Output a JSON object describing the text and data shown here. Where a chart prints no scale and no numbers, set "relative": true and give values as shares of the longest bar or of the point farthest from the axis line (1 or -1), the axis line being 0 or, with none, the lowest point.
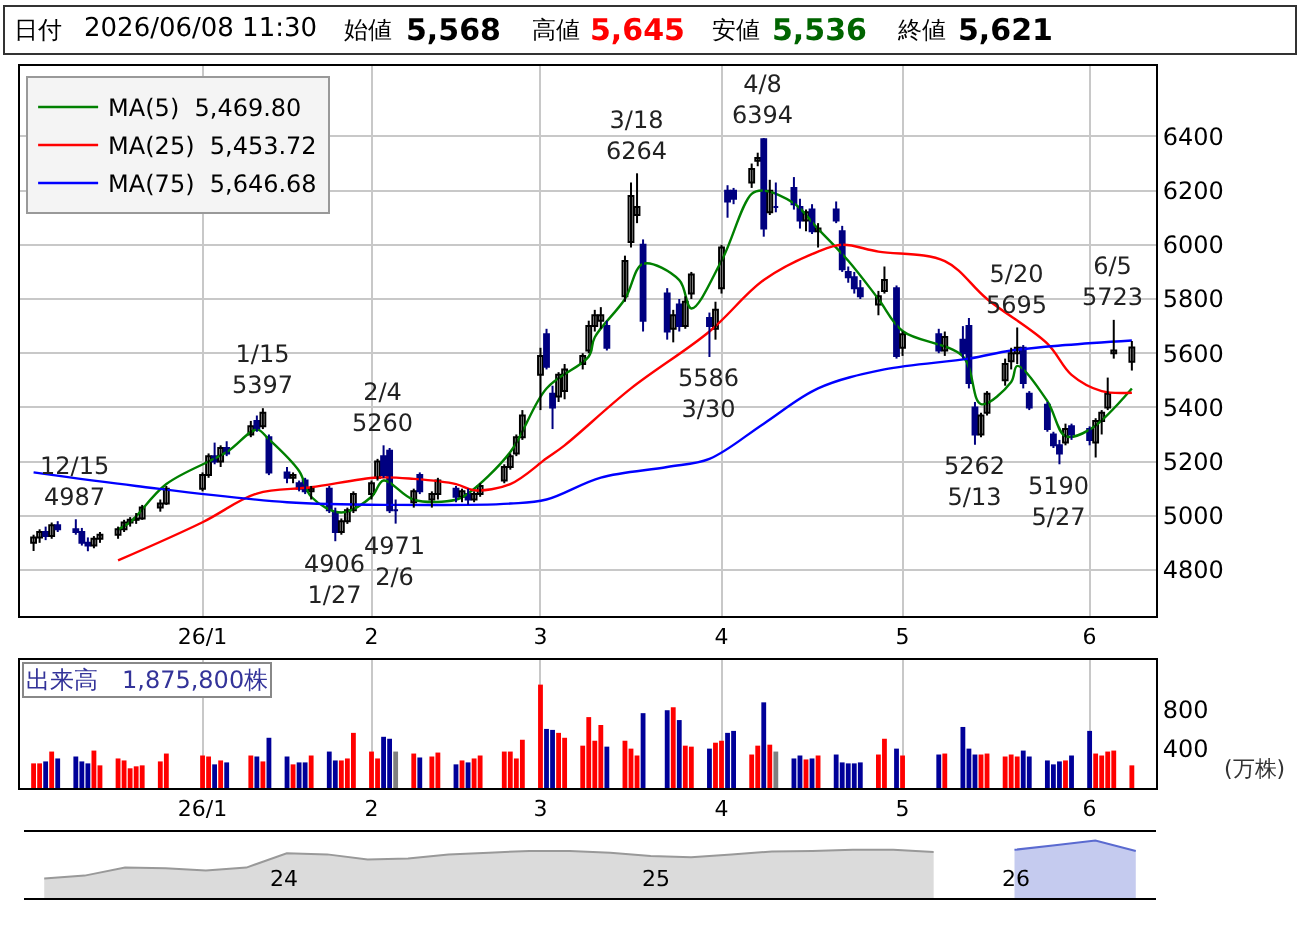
{
  "chart_data": [
    {
      "type": "other",
      "annotations": [
        "日付",
        "2026/06/08 11:30",
        "始値",
        "5,568",
        "高値",
        "5,645",
        "安値",
        "5,536",
        "終値",
        "5,621"
      ],
      "colors": [
        "#000000",
        "#000000",
        "#000000",
        "#000000",
        "#000000",
        "#ff0000",
        "#000000",
        "#006400",
        "#000000",
        "#000000"
      ]
    },
    {
      "type": "candlestick",
      "color": "#000080",
      "colors": [
        "#ffffff",
        "#ffffff",
        "#000080",
        "#ffffff",
        "#000080",
        "#000080",
        "#000080",
        "#000080",
        "#ffffff",
        "#ffffff",
        "#ffffff",
        "#ffffff",
        "#ffffff",
        "#ffffff",
        "#ffffff",
        "#ffffff",
        "#ffffff",
        "#ffffff",
        "#ffffff",
        "#000080",
        "#ffffff",
        "#000080",
        "#ffffff",
        "#000080",
        "#ffffff",
        "#000080",
        "#000080",
        "#ffffff",
        "#000080",
        "#000080",
        "#ffffff",
        "#000080",
        "#000080",
        "#ffffff",
        "#ffffff",
        "#ffffff",
        "#ffffff",
        "#ffffff",
        "#000080",
        "#000080",
        "#000080",
        "#ffffff",
        "#000080",
        "#ffffff",
        "#ffffff",
        "#000080",
        "#ffffff",
        "#000080",
        "#ffffff",
        "#ffffff",
        "#ffffff",
        "#ffffff",
        "#ffffff",
        "#ffffff",
        "#ffffff",
        "#000080",
        "#000080",
        "#ffffff",
        "#ffffff",
        "#ffffff",
        "#ffffff",
        "#ffffff",
        "#ffffff",
        "#000080",
        "#ffffff",
        "#ffffff",
        "#ffffff",
        "#000080",
        "#000080",
        "#ffffff",
        "#000080",
        "#ffffff",
        "#ffffff",
        "#000080",
        "#ffffff",
        "#ffffff",
        "#000080",
        "#000080",
        "#ffffff",
        "#ffffff",
        "#000080",
        "#ffffff",
        "#000080",
        "#000080",
        "#000080",
        "#ffffff",
        "#000080",
        "#ffffff",
        "#000080",
        "#000080",
        "#000080",
        "#000080",
        "#000080",
        "#ffffff",
        "#ffffff",
        "#000080",
        "#ffffff",
        "#000080",
        "#ffffff",
        "#000080",
        "#000080",
        "#000080",
        "#ffffff",
        "#ffffff",
        "#ffffff",
        "#ffffff",
        "#ffffff",
        "#000080",
        "#000080",
        "#000080",
        "#000080",
        "#000080",
        "#ffffff",
        "#000080",
        "#000080",
        "#ffffff",
        "#ffffff",
        "#ffffff",
        "#ffffff",
        "#ffffff"
      ],
      "x": [
        "2025-12-08",
        "2025-12-09",
        "2025-12-10",
        "2025-12-11",
        "2025-12-12",
        "2025-12-15",
        "2025-12-16",
        "2025-12-17",
        "2025-12-18",
        "2025-12-19",
        "2025-12-22",
        "2025-12-23",
        "2025-12-24",
        "2025-12-25",
        "2025-12-26",
        "2025-12-29",
        "2025-12-30",
        "2026-01-05",
        "2026-01-06",
        "2026-01-07",
        "2026-01-08",
        "2026-01-09",
        "2026-01-13",
        "2026-01-14",
        "2026-01-15",
        "2026-01-16",
        "2026-01-19",
        "2026-01-20",
        "2026-01-21",
        "2026-01-22",
        "2026-01-23",
        "2026-01-26",
        "2026-01-27",
        "2026-01-28",
        "2026-01-29",
        "2026-01-30",
        "2026-02-02",
        "2026-02-03",
        "2026-02-04",
        "2026-02-05",
        "2026-02-06",
        "2026-02-09",
        "2026-02-10",
        "2026-02-12",
        "2026-02-13",
        "2026-02-16",
        "2026-02-17",
        "2026-02-18",
        "2026-02-19",
        "2026-02-20",
        "2026-02-24",
        "2026-02-25",
        "2026-02-26",
        "2026-02-27",
        "2026-03-02",
        "2026-03-03",
        "2026-03-04",
        "2026-03-05",
        "2026-03-06",
        "2026-03-09",
        "2026-03-10",
        "2026-03-11",
        "2026-03-12",
        "2026-03-13",
        "2026-03-16",
        "2026-03-17",
        "2026-03-18",
        "2026-03-19",
        "2026-03-23",
        "2026-03-24",
        "2026-03-25",
        "2026-03-26",
        "2026-03-27",
        "2026-03-30",
        "2026-03-31",
        "2026-04-01",
        "2026-04-02",
        "2026-04-03",
        "2026-04-06",
        "2026-04-07",
        "2026-04-08",
        "2026-04-09",
        "2026-04-10",
        "2026-04-13",
        "2026-04-14",
        "2026-04-15",
        "2026-04-16",
        "2026-04-17",
        "2026-04-20",
        "2026-04-21",
        "2026-04-22",
        "2026-04-23",
        "2026-04-24",
        "2026-04-27",
        "2026-04-28",
        "2026-04-30",
        "2026-05-01",
        "2026-05-07",
        "2026-05-08",
        "2026-05-11",
        "2026-05-12",
        "2026-05-13",
        "2026-05-14",
        "2026-05-15",
        "2026-05-18",
        "2026-05-19",
        "2026-05-20",
        "2026-05-21",
        "2026-05-22",
        "2026-05-25",
        "2026-05-26",
        "2026-05-27",
        "2026-05-28",
        "2026-05-29",
        "2026-06-01",
        "2026-06-02",
        "2026-06-03",
        "2026-06-04",
        "2026-06-05",
        "2026-06-08"
      ],
      "ohlc": [
        [
          4900,
          4930,
          4870,
          4920
        ],
        [
          4920,
          4950,
          4900,
          4940
        ],
        [
          4940,
          4960,
          4910,
          4925
        ],
        [
          4925,
          4975,
          4915,
          4965
        ],
        [
          4965,
          4980,
          4940,
          4950
        ],
        [
          4950,
          4987,
          4930,
          4940
        ],
        [
          4940,
          4955,
          4890,
          4900
        ],
        [
          4900,
          4920,
          4869,
          4890
        ],
        [
          4890,
          4925,
          4880,
          4915
        ],
        [
          4915,
          4940,
          4900,
          4930
        ],
        [
          4930,
          4960,
          4915,
          4950
        ],
        [
          4950,
          4985,
          4940,
          4975
        ],
        [
          4975,
          4995,
          4960,
          4985
        ],
        [
          4985,
          5010,
          4970,
          4990
        ],
        [
          4990,
          5040,
          4985,
          5030
        ],
        [
          5030,
          5060,
          5015,
          5045
        ],
        [
          5045,
          5110,
          5040,
          5100
        ],
        [
          5100,
          5160,
          5090,
          5150
        ],
        [
          5150,
          5230,
          5140,
          5220
        ],
        [
          5220,
          5270,
          5190,
          5200
        ],
        [
          5200,
          5260,
          5180,
          5250
        ],
        [
          5250,
          5275,
          5220,
          5230
        ],
        [
          5300,
          5350,
          5290,
          5330
        ],
        [
          5350,
          5370,
          5310,
          5320
        ],
        [
          5330,
          5397,
          5320,
          5380
        ],
        [
          5290,
          5300,
          5150,
          5160
        ],
        [
          5160,
          5180,
          5120,
          5140
        ],
        [
          5140,
          5160,
          5120,
          5150
        ],
        [
          5120,
          5130,
          5090,
          5100
        ],
        [
          5130,
          5140,
          5080,
          5090
        ],
        [
          5090,
          5110,
          5060,
          5100
        ],
        [
          5100,
          5110,
          5010,
          5020
        ],
        [
          5010,
          5030,
          4906,
          4940
        ],
        [
          4940,
          4990,
          4930,
          4980
        ],
        [
          4980,
          5030,
          4970,
          5020
        ],
        [
          5020,
          5090,
          5010,
          5080
        ],
        [
          5080,
          5130,
          5060,
          5120
        ],
        [
          5140,
          5210,
          5130,
          5200
        ],
        [
          5220,
          5260,
          5140,
          5150
        ],
        [
          5240,
          5250,
          5010,
          5020
        ],
        [
          5020,
          5060,
          4971,
          5020
        ],
        [
          5050,
          5100,
          5030,
          5090
        ],
        [
          5150,
          5160,
          5080,
          5090
        ],
        [
          5060,
          5090,
          5030,
          5080
        ],
        [
          5080,
          5140,
          5060,
          5130
        ],
        [
          5100,
          5110,
          5050,
          5070
        ],
        [
          5070,
          5100,
          5050,
          5090
        ],
        [
          5080,
          5100,
          5040,
          5060
        ],
        [
          5060,
          5090,
          5050,
          5080
        ],
        [
          5080,
          5120,
          5070,
          5110
        ],
        [
          5130,
          5190,
          5120,
          5180
        ],
        [
          5180,
          5230,
          5170,
          5220
        ],
        [
          5230,
          5300,
          5220,
          5290
        ],
        [
          5290,
          5390,
          5280,
          5370
        ],
        [
          5520,
          5620,
          5390,
          5590
        ],
        [
          5670,
          5690,
          5540,
          5550
        ],
        [
          5450,
          5480,
          5320,
          5400
        ],
        [
          5440,
          5530,
          5420,
          5520
        ],
        [
          5460,
          5560,
          5430,
          5540
        ],
        [
          5560,
          5600,
          5540,
          5590
        ],
        [
          5610,
          5720,
          5600,
          5700
        ],
        [
          5700,
          5760,
          5680,
          5740
        ],
        [
          5720,
          5770,
          5690,
          5740
        ],
        [
          5700,
          5720,
          5610,
          5620
        ],
        [
          5810,
          5960,
          5790,
          5940
        ],
        [
          6010,
          6230,
          5990,
          6180
        ],
        [
          6110,
          6264,
          6080,
          6140
        ],
        [
          6000,
          6020,
          5680,
          5720
        ],
        [
          5820,
          5840,
          5650,
          5680
        ],
        [
          5690,
          5760,
          5640,
          5740
        ],
        [
          5780,
          5800,
          5680,
          5700
        ],
        [
          5700,
          5810,
          5690,
          5790
        ],
        [
          5820,
          5900,
          5800,
          5890
        ],
        [
          5730,
          5750,
          5586,
          5700
        ],
        [
          5690,
          5790,
          5650,
          5760
        ],
        [
          5840,
          6000,
          5820,
          5990
        ],
        [
          6200,
          6220,
          6100,
          6160
        ],
        [
          6200,
          6210,
          6150,
          6170
        ],
        [
          6230,
          6300,
          6210,
          6280
        ],
        [
          6310,
          6340,
          6290,
          6320
        ],
        [
          6390,
          6394,
          6030,
          6060
        ],
        [
          6120,
          6240,
          6110,
          6200
        ],
        [
          6140,
          6230,
          6120,
          6140
        ],
        [
          6210,
          6250,
          6130,
          6150
        ],
        [
          6140,
          6170,
          6060,
          6090
        ],
        [
          6090,
          6130,
          6050,
          6120
        ],
        [
          6130,
          6150,
          6040,
          6050
        ],
        [
          6050,
          6080,
          5990,
          6060
        ],
        [
          6130,
          6160,
          6080,
          6090
        ],
        [
          6050,
          6070,
          5900,
          5910
        ],
        [
          5900,
          5920,
          5860,
          5880
        ],
        [
          5880,
          5900,
          5820,
          5840
        ],
        [
          5840,
          5870,
          5800,
          5810
        ],
        [
          5780,
          5830,
          5740,
          5810
        ],
        [
          5830,
          5920,
          5820,
          5870
        ],
        [
          5840,
          5850,
          5580,
          5590
        ],
        [
          5620,
          5680,
          5590,
          5670
        ],
        [
          5670,
          5690,
          5600,
          5610
        ],
        [
          5610,
          5680,
          5590,
          5660
        ],
        [
          5650,
          5700,
          5580,
          5600
        ],
        [
          5700,
          5730,
          5470,
          5490
        ],
        [
          5400,
          5420,
          5262,
          5300
        ],
        [
          5300,
          5380,
          5290,
          5370
        ],
        [
          5380,
          5460,
          5370,
          5450
        ],
        [
          5500,
          5580,
          5480,
          5560
        ],
        [
          5570,
          5620,
          5540,
          5600
        ],
        [
          5600,
          5695,
          5560,
          5620
        ],
        [
          5620,
          5630,
          5470,
          5490
        ],
        [
          5450,
          5460,
          5390,
          5400
        ],
        [
          5410,
          5420,
          5310,
          5320
        ],
        [
          5300,
          5310,
          5250,
          5260
        ],
        [
          5260,
          5280,
          5190,
          5230
        ],
        [
          5270,
          5340,
          5260,
          5320
        ],
        [
          5330,
          5340,
          5280,
          5300
        ],
        [
          5320,
          5330,
          5260,
          5280
        ],
        [
          5270,
          5360,
          5215,
          5350
        ],
        [
          5350,
          5390,
          5300,
          5380
        ],
        [
          5400,
          5510,
          5390,
          5450
        ],
        [
          5600,
          5723,
          5580,
          5610
        ],
        [
          5568,
          5645,
          5536,
          5621
        ]
      ],
      "series": [
        {
          "type": "line",
          "name": "MA(5)  5,469.80",
          "color": "#008000",
          "x": [
            "2025-12-22",
            "2025-12-24",
            "2025-12-30",
            "2026-01-09",
            "2026-01-14",
            "2026-01-16",
            "2026-01-21",
            "2026-01-23",
            "2026-01-28",
            "2026-02-02",
            "2026-02-04",
            "2026-02-09",
            "2026-02-16",
            "2026-02-18",
            "2026-02-25",
            "2026-03-03",
            "2026-03-10",
            "2026-03-11",
            "2026-03-16",
            "2026-03-19",
            "2026-03-25",
            "2026-03-27",
            "2026-04-01",
            "2026-04-06",
            "2026-04-08",
            "2026-04-13",
            "2026-04-17",
            "2026-04-22",
            "2026-04-27",
            "2026-05-01",
            "2026-05-11",
            "2026-05-14",
            "2026-05-19",
            "2026-05-20",
            "2026-05-25",
            "2026-05-28",
            "2026-06-01",
            "2026-06-08"
          ],
          "values": [
            4950,
            4976,
            5117,
            5235,
            5318,
            5282,
            5165,
            5070,
            5012,
            5070,
            5130,
            5059,
            5059,
            5082,
            5235,
            5470,
            5588,
            5659,
            5800,
            5930,
            5870,
            5765,
            5941,
            6188,
            6200,
            6153,
            6059,
            5941,
            5800,
            5682,
            5588,
            5412,
            5494,
            5553,
            5423,
            5294,
            5318,
            5470
          ]
        },
        {
          "type": "line",
          "name": "MA(25)  5,453.72",
          "color": "#ff0000",
          "x": [
            "2025-12-22",
            "2026-01-05",
            "2026-01-14",
            "2026-01-23",
            "2026-02-03",
            "2026-02-09",
            "2026-02-16",
            "2026-02-19",
            "2026-02-25",
            "2026-03-03",
            "2026-03-06",
            "2026-03-17",
            "2026-03-30",
            "2026-04-08",
            "2026-04-17",
            "2026-04-21",
            "2026-04-27",
            "2026-05-08",
            "2026-05-15",
            "2026-05-25",
            "2026-05-29",
            "2026-06-03",
            "2026-06-08"
          ],
          "values": [
            4835,
            4976,
            5082,
            5105,
            5141,
            5136,
            5117,
            5094,
            5117,
            5212,
            5260,
            5470,
            5680,
            5870,
            5975,
            6000,
            5975,
            5940,
            5800,
            5635,
            5520,
            5460,
            5454
          ]
        },
        {
          "type": "line",
          "name": "MA(75)  5,646.68",
          "color": "#0000ff",
          "x": [
            "2025-12-08",
            "2025-12-25",
            "2026-01-19",
            "2026-02-06",
            "2026-02-25",
            "2026-03-03",
            "2026-03-12",
            "2026-03-23",
            "2026-03-30",
            "2026-04-08",
            "2026-04-17",
            "2026-04-28",
            "2026-05-12",
            "2026-05-19",
            "2026-05-28",
            "2026-06-08"
          ],
          "values": [
            5160,
            5110,
            5050,
            5040,
            5045,
            5060,
            5141,
            5180,
            5210,
            5340,
            5470,
            5540,
            5580,
            5610,
            5630,
            5647
          ]
        }
      ],
      "annotations": [
        {
          "text": "12/15\n4987",
          "x": "2025-12-15",
          "y": 4987
        },
        {
          "text": "1/15\n5397",
          "x": "2026-01-15",
          "y": 5397
        },
        {
          "text": "4906\n1/27",
          "x": "2026-01-27",
          "y": 4906
        },
        {
          "text": "2/4\n5260",
          "x": "2026-02-04",
          "y": 5260
        },
        {
          "text": "4971\n2/6",
          "x": "2026-02-06",
          "y": 4971
        },
        {
          "text": "3/18\n6264",
          "x": "2026-03-18",
          "y": 6264
        },
        {
          "text": "5586\n3/30",
          "x": "2026-03-30",
          "y": 5586
        },
        {
          "text": "4/8\n6394",
          "x": "2026-04-08",
          "y": 6394
        },
        {
          "text": "5262\n5/13",
          "x": "2026-05-13",
          "y": 5262
        },
        {
          "text": "5/20\n5695",
          "x": "2026-05-20",
          "y": 5695
        },
        {
          "text": "5190\n5/27",
          "x": "2026-05-27",
          "y": 5190
        },
        {
          "text": "6/5\n5723",
          "x": "2026-06-05",
          "y": 5723
        }
      ],
      "xlim": [
        "2025-12-05T18:00",
        "2026-06-12"
      ],
      "xticks": [
        {
          "value": "2026-01-05",
          "label": "26/1"
        },
        {
          "value": "2026-02-02",
          "label": "2"
        },
        {
          "value": "2026-03-02",
          "label": "3"
        },
        {
          "value": "2026-04-01",
          "label": "4"
        },
        {
          "value": "2026-05-01",
          "label": "5"
        },
        {
          "value": "2026-06-01",
          "label": "6"
        }
      ],
      "ylim": [
        4630,
        6660
      ],
      "yticks": [
        4800,
        5000,
        5200,
        5400,
        5600,
        5800,
        6000,
        6200,
        6400
      ],
      "grid": true,
      "legend": "top left"
    },
    {
      "type": "bar",
      "x": [
        "2025-12-08",
        "2025-12-09",
        "2025-12-10",
        "2025-12-11",
        "2025-12-12",
        "2025-12-15",
        "2025-12-16",
        "2025-12-17",
        "2025-12-18",
        "2025-12-19",
        "2025-12-22",
        "2025-12-23",
        "2025-12-24",
        "2025-12-25",
        "2025-12-26",
        "2025-12-29",
        "2025-12-30",
        "2026-01-05",
        "2026-01-06",
        "2026-01-07",
        "2026-01-08",
        "2026-01-09",
        "2026-01-13",
        "2026-01-14",
        "2026-01-15",
        "2026-01-16",
        "2026-01-19",
        "2026-01-20",
        "2026-01-21",
        "2026-01-22",
        "2026-01-23",
        "2026-01-26",
        "2026-01-27",
        "2026-01-28",
        "2026-01-29",
        "2026-01-30",
        "2026-02-02",
        "2026-02-03",
        "2026-02-04",
        "2026-02-05",
        "2026-02-06",
        "2026-02-09",
        "2026-02-10",
        "2026-02-12",
        "2026-02-13",
        "2026-02-16",
        "2026-02-17",
        "2026-02-18",
        "2026-02-19",
        "2026-02-20",
        "2026-02-24",
        "2026-02-25",
        "2026-02-26",
        "2026-02-27",
        "2026-03-02",
        "2026-03-03",
        "2026-03-04",
        "2026-03-05",
        "2026-03-06",
        "2026-03-09",
        "2026-03-10",
        "2026-03-11",
        "2026-03-12",
        "2026-03-13",
        "2026-03-16",
        "2026-03-17",
        "2026-03-18",
        "2026-03-19",
        "2026-03-23",
        "2026-03-24",
        "2026-03-25",
        "2026-03-26",
        "2026-03-27",
        "2026-03-30",
        "2026-03-31",
        "2026-04-01",
        "2026-04-02",
        "2026-04-03",
        "2026-04-06",
        "2026-04-07",
        "2026-04-08",
        "2026-04-09",
        "2026-04-10",
        "2026-04-13",
        "2026-04-14",
        "2026-04-15",
        "2026-04-16",
        "2026-04-17",
        "2026-04-20",
        "2026-04-21",
        "2026-04-22",
        "2026-04-23",
        "2026-04-24",
        "2026-04-27",
        "2026-04-28",
        "2026-04-30",
        "2026-05-01",
        "2026-05-07",
        "2026-05-08",
        "2026-05-11",
        "2026-05-12",
        "2026-05-13",
        "2026-05-14",
        "2026-05-15",
        "2026-05-18",
        "2026-05-19",
        "2026-05-20",
        "2026-05-21",
        "2026-05-22",
        "2026-05-25",
        "2026-05-26",
        "2026-05-27",
        "2026-05-28",
        "2026-05-29",
        "2026-06-01",
        "2026-06-02",
        "2026-06-03",
        "2026-06-04",
        "2026-06-05",
        "2026-06-08"
      ],
      "values": [
        250,
        250,
        270,
        370,
        300,
        320,
        270,
        250,
        380,
        230,
        300,
        280,
        200,
        220,
        230,
        270,
        350,
        330,
        320,
        240,
        280,
        260,
        330,
        320,
        270,
        510,
        320,
        240,
        260,
        260,
        330,
        370,
        280,
        280,
        300,
        560,
        370,
        300,
        520,
        500,
        370,
        350,
        310,
        320,
        360,
        240,
        280,
        260,
        300,
        330,
        370,
        370,
        300,
        490,
        1050,
        600,
        590,
        560,
        510,
        430,
        720,
        480,
        640,
        420,
        480,
        400,
        330,
        760,
        790,
        820,
        690,
        430,
        420,
        400,
        460,
        480,
        560,
        580,
        340,
        430,
        870,
        440,
        370,
        300,
        330,
        290,
        300,
        330,
        340,
        260,
        250,
        250,
        260,
        340,
        500,
        400,
        330,
        340,
        350,
        620,
        400,
        340,
        340,
        350,
        320,
        340,
        320,
        380,
        320,
        280,
        240,
        270,
        280,
        330,
        580,
        350,
        330,
        370,
        380,
        230
      ],
      "colors": [
        "#ff0000",
        "#ff0000",
        "#000099",
        "#ff0000",
        "#000099",
        "#000099",
        "#000099",
        "#000099",
        "#ff0000",
        "#ff0000",
        "#ff0000",
        "#ff0000",
        "#ff0000",
        "#ff0000",
        "#ff0000",
        "#ff0000",
        "#ff0000",
        "#ff0000",
        "#ff0000",
        "#000099",
        "#ff0000",
        "#000099",
        "#ff0000",
        "#000099",
        "#ff0000",
        "#000099",
        "#000099",
        "#ff0000",
        "#000099",
        "#000099",
        "#ff0000",
        "#000099",
        "#000099",
        "#ff0000",
        "#ff0000",
        "#ff0000",
        "#ff0000",
        "#ff0000",
        "#000099",
        "#000099",
        "#808080",
        "#ff0000",
        "#000099",
        "#ff0000",
        "#ff0000",
        "#000099",
        "#ff0000",
        "#000099",
        "#ff0000",
        "#ff0000",
        "#ff0000",
        "#ff0000",
        "#ff0000",
        "#ff0000",
        "#ff0000",
        "#000099",
        "#000099",
        "#ff0000",
        "#ff0000",
        "#ff0000",
        "#ff0000",
        "#ff0000",
        "#ff0000",
        "#000099",
        "#ff0000",
        "#ff0000",
        "#ff0000",
        "#000099",
        "#000099",
        "#ff0000",
        "#000099",
        "#ff0000",
        "#ff0000",
        "#000099",
        "#ff0000",
        "#ff0000",
        "#000099",
        "#000099",
        "#ff0000",
        "#ff0000",
        "#000099",
        "#ff0000",
        "#808080",
        "#000099",
        "#000099",
        "#ff0000",
        "#000099",
        "#ff0000",
        "#000099",
        "#000099",
        "#000099",
        "#000099",
        "#000099",
        "#ff0000",
        "#ff0000",
        "#000099",
        "#ff0000",
        "#000099",
        "#ff0000",
        "#000099",
        "#000099",
        "#000099",
        "#ff0000",
        "#ff0000",
        "#ff0000",
        "#ff0000",
        "#ff0000",
        "#000099",
        "#000099",
        "#000099",
        "#000099",
        "#000099",
        "#ff0000",
        "#000099",
        "#000099",
        "#ff0000",
        "#ff0000",
        "#ff0000",
        "#ff0000",
        "#ff0000"
      ],
      "annotations": [
        "出来高　1,875,800株",
        "(万株)"
      ],
      "xlim": [
        "2025-12-05T18:00",
        "2026-06-12"
      ],
      "xticks": [
        {
          "value": "2026-01-05",
          "label": "26/1"
        },
        {
          "value": "2026-02-02",
          "label": "2"
        },
        {
          "value": "2026-03-02",
          "label": "3"
        },
        {
          "value": "2026-04-01",
          "label": "4"
        },
        {
          "value": "2026-05-01",
          "label": "5"
        },
        {
          "value": "2026-06-01",
          "label": "6"
        }
      ],
      "ylim": [
        0,
        1300
      ],
      "yticks": [
        400,
        800
      ],
      "grid": "x"
    },
    {
      "type": "area",
      "relative": true,
      "categories": [
        null,
        null,
        null,
        null,
        null,
        null,
        null,
        null,
        null,
        null,
        null,
        null,
        null,
        null,
        null,
        null,
        null,
        null,
        null,
        null,
        null,
        null,
        null,
        null,
        null,
        null,
        null,
        null
      ],
      "series": [
        {
          "color": "#999999",
          "values": [
            0.34,
            0.39,
            0.53,
            0.52,
            0.48,
            0.53,
            0.78,
            0.76,
            0.67,
            0.69,
            0.76,
            0.79,
            0.82,
            0.82,
            0.79,
            0.73,
            0.71,
            0.76,
            0.81,
            0.82,
            0.84,
            0.84,
            0.8,
            null,
            null,
            null,
            null,
            null
          ]
        },
        {
          "color": "#5a6ad0",
          "values": [
            null,
            null,
            null,
            null,
            null,
            null,
            null,
            null,
            null,
            null,
            null,
            null,
            null,
            null,
            null,
            null,
            null,
            null,
            null,
            null,
            null,
            null,
            null,
            null,
            0.84,
            0.92,
            1,
            0.82
          ]
        }
      ],
      "annotations": [
        "24",
        "25",
        "26"
      ]
    }
  ]
}
